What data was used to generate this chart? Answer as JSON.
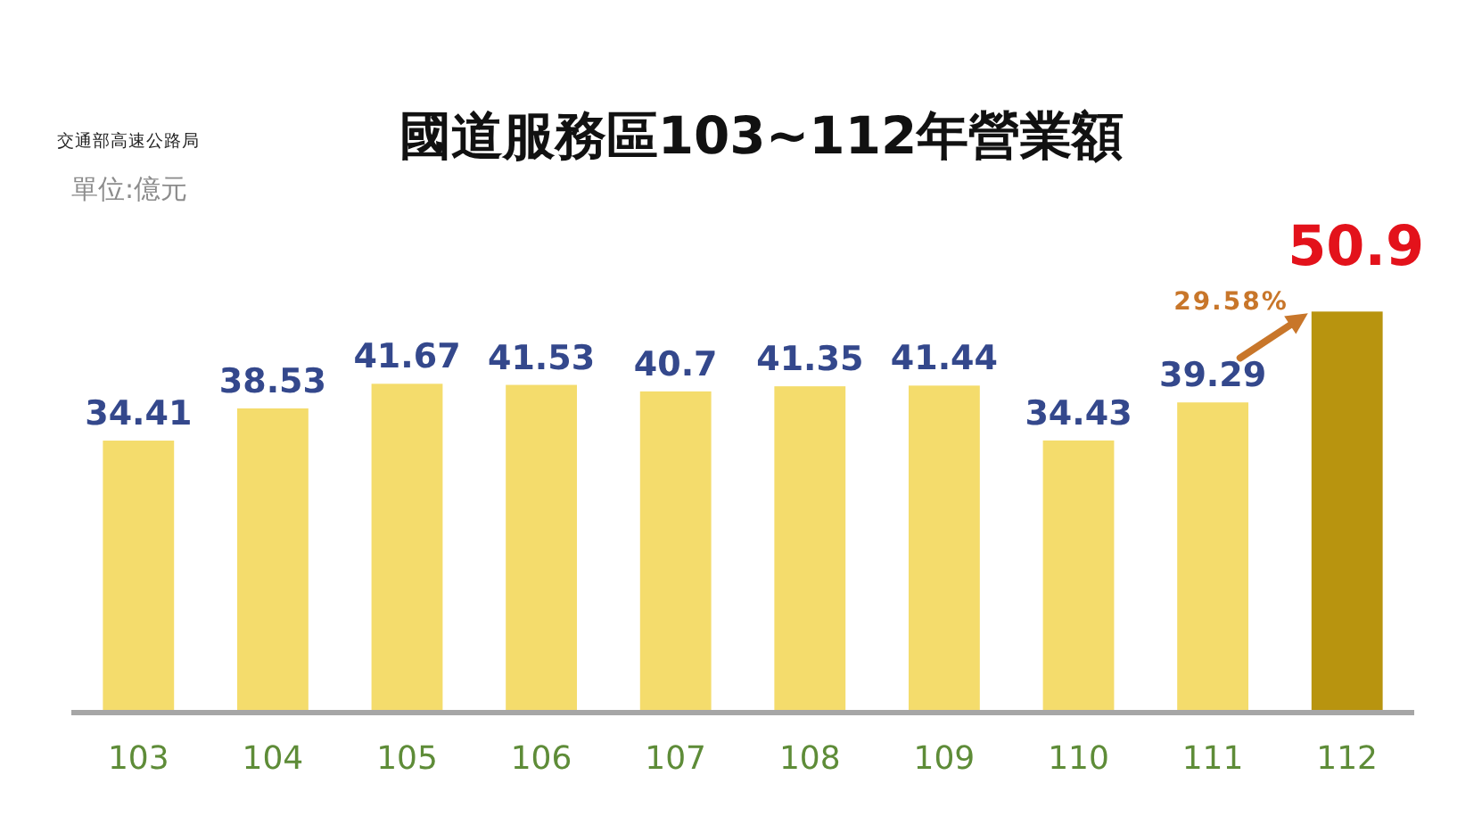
{
  "chart_data": {
    "type": "bar",
    "title": "國道服務區103~112年營業額",
    "categories": [
      "103",
      "104",
      "105",
      "106",
      "107",
      "108",
      "109",
      "110",
      "111",
      "112"
    ],
    "values": [
      34.41,
      38.53,
      41.67,
      41.53,
      40.7,
      41.35,
      41.44,
      34.43,
      39.29,
      50.9
    ],
    "colors": [
      "#f4dc6c",
      "#f4dc6c",
      "#f4dc6c",
      "#f4dc6c",
      "#f4dc6c",
      "#f4dc6c",
      "#f4dc6c",
      "#f4dc6c",
      "#f4dc6c",
      "#b8940f"
    ],
    "data_labels": true,
    "annotations": [
      "交通部高速公路局",
      "單位:億元",
      {
        "text": "29.58%",
        "x": "112",
        "y": 50.9
      }
    ]
  }
}
